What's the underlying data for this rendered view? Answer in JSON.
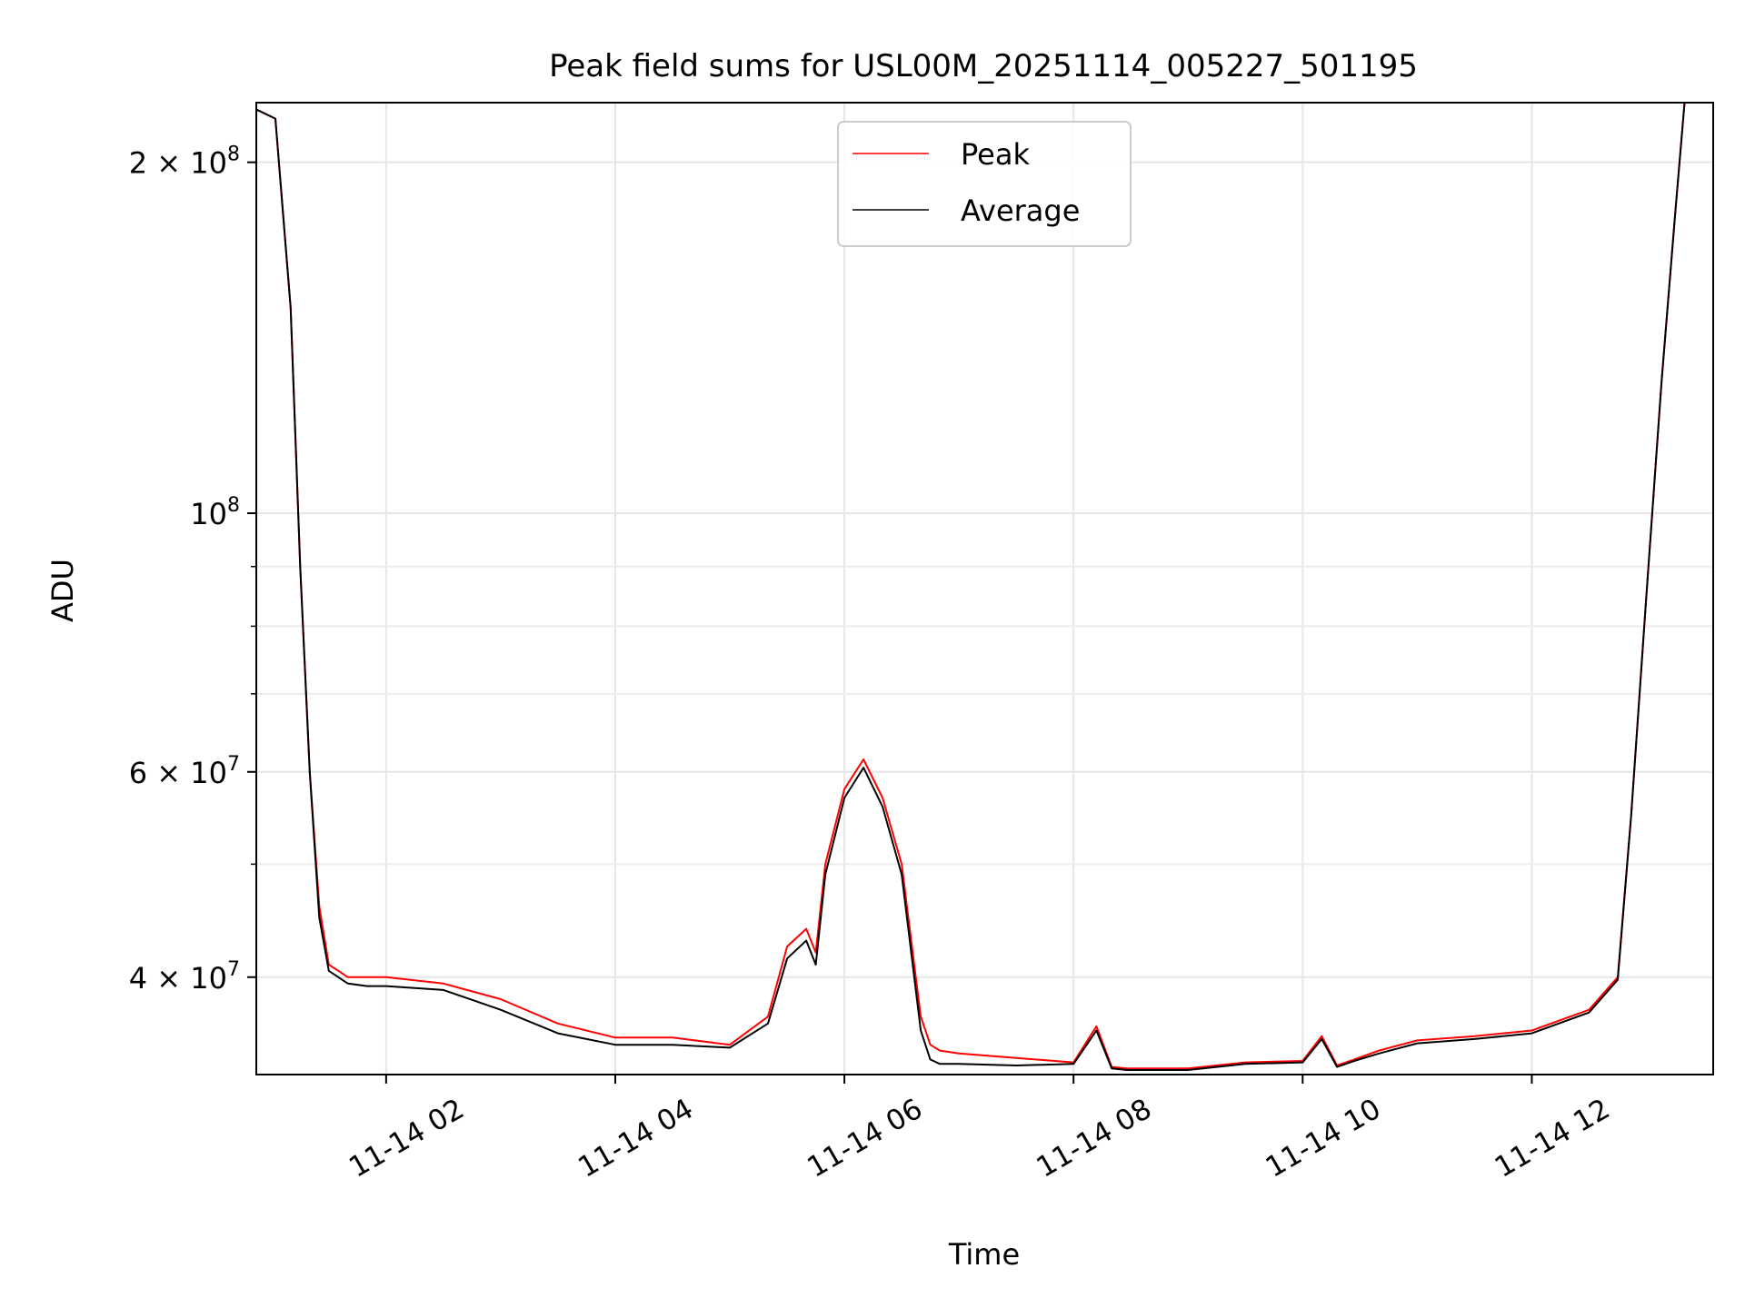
{
  "chart_data": {
    "type": "line",
    "title": "Peak field sums for USL00M_20251114_005227_501195",
    "xlabel": "Time",
    "ylabel": "ADU",
    "y_scale": "log",
    "ylim": [
      33000000,
      225000000
    ],
    "xlim": [
      "2025-11-14 00:52",
      "2025-11-14 13:35"
    ],
    "grid": true,
    "legend_position": "upper-center",
    "x_ticks": [
      {
        "value": "2025-11-14 02:00",
        "label": "11-14 02"
      },
      {
        "value": "2025-11-14 04:00",
        "label": "11-14 04"
      },
      {
        "value": "2025-11-14 06:00",
        "label": "11-14 06"
      },
      {
        "value": "2025-11-14 08:00",
        "label": "11-14 08"
      },
      {
        "value": "2025-11-14 10:00",
        "label": "11-14 10"
      },
      {
        "value": "2025-11-14 12:00",
        "label": "11-14 12"
      }
    ],
    "y_ticks": [
      {
        "value": 40000000,
        "mantissa": "4",
        "exponent": "7"
      },
      {
        "value": 60000000,
        "mantissa": "6",
        "exponent": "7"
      },
      {
        "value": 100000000,
        "mantissa": "",
        "exponent": "8"
      },
      {
        "value": 200000000,
        "mantissa": "2",
        "exponent": "8"
      }
    ],
    "y_minor_ticks": [
      50000000,
      70000000,
      80000000,
      90000000
    ],
    "x": [
      "2025-11-14 00:52",
      "2025-11-14 01:02",
      "2025-11-14 01:10",
      "2025-11-14 01:15",
      "2025-11-14 01:20",
      "2025-11-14 01:25",
      "2025-11-14 01:30",
      "2025-11-14 01:35",
      "2025-11-14 01:40",
      "2025-11-14 01:50",
      "2025-11-14 02:00",
      "2025-11-14 02:30",
      "2025-11-14 03:00",
      "2025-11-14 03:30",
      "2025-11-14 04:00",
      "2025-11-14 04:30",
      "2025-11-14 05:00",
      "2025-11-14 05:20",
      "2025-11-14 05:30",
      "2025-11-14 05:40",
      "2025-11-14 05:45",
      "2025-11-14 05:50",
      "2025-11-14 06:00",
      "2025-11-14 06:10",
      "2025-11-14 06:20",
      "2025-11-14 06:30",
      "2025-11-14 06:40",
      "2025-11-14 06:45",
      "2025-11-14 06:50",
      "2025-11-14 07:00",
      "2025-11-14 07:30",
      "2025-11-14 08:00",
      "2025-11-14 08:12",
      "2025-11-14 08:20",
      "2025-11-14 08:28",
      "2025-11-14 09:00",
      "2025-11-14 09:30",
      "2025-11-14 10:00",
      "2025-11-14 10:10",
      "2025-11-14 10:18",
      "2025-11-14 10:27",
      "2025-11-14 10:40",
      "2025-11-14 11:00",
      "2025-11-14 11:30",
      "2025-11-14 12:00",
      "2025-11-14 12:30",
      "2025-11-14 12:45",
      "2025-11-14 12:52",
      "2025-11-14 13:00",
      "2025-11-14 13:08",
      "2025-11-14 13:15",
      "2025-11-14 13:20",
      "2025-11-14 13:25",
      "2025-11-14 13:35"
    ],
    "series": [
      {
        "name": "Peak",
        "color": "#ff0000",
        "values": [
          222000000,
          218000000,
          150000000,
          90000000,
          60000000,
          46000000,
          41000000,
          40500000,
          40000000,
          40000000,
          40000000,
          39500000,
          38300000,
          36500000,
          35500000,
          35500000,
          35000000,
          37000000,
          42500000,
          44000000,
          42000000,
          50000000,
          58000000,
          61500000,
          57000000,
          50000000,
          37000000,
          35000000,
          34600000,
          34400000,
          34100000,
          33800000,
          36300000,
          33500000,
          33400000,
          33400000,
          33800000,
          33900000,
          35600000,
          33600000,
          34000000,
          34600000,
          35300000,
          35600000,
          36000000,
          37500000,
          40000000,
          55000000,
          85000000,
          130000000,
          180000000,
          225000000,
          225000000,
          225000000
        ]
      },
      {
        "name": "Average",
        "color": "#000000",
        "values": [
          222000000,
          218000000,
          150000000,
          90000000,
          60000000,
          45000000,
          40500000,
          40000000,
          39500000,
          39300000,
          39300000,
          39000000,
          37500000,
          35800000,
          35000000,
          35000000,
          34800000,
          36500000,
          41500000,
          43000000,
          41000000,
          49000000,
          57000000,
          60500000,
          56000000,
          49000000,
          36000000,
          34000000,
          33700000,
          33700000,
          33600000,
          33700000,
          36000000,
          33400000,
          33300000,
          33300000,
          33700000,
          33800000,
          35400000,
          33500000,
          33900000,
          34400000,
          35100000,
          35400000,
          35800000,
          37300000,
          39800000,
          55000000,
          85000000,
          130000000,
          180000000,
          225000000,
          225000000,
          225000000
        ]
      }
    ]
  }
}
